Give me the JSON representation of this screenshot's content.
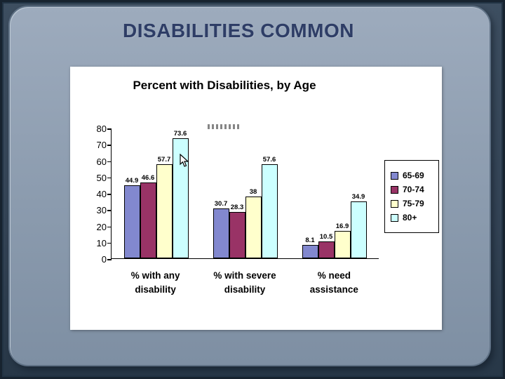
{
  "slide": {
    "title": "DISABILITIES COMMON"
  },
  "chart_data": {
    "type": "bar",
    "title": "Percent with Disabilities, by Age",
    "categories": [
      "% with any disability",
      "% with severe disability",
      "% need assistance"
    ],
    "series": [
      {
        "name": "65-69",
        "color": "#8288cf",
        "values": [
          44.9,
          30.7,
          8.1
        ]
      },
      {
        "name": "70-74",
        "color": "#993366",
        "values": [
          46.6,
          28.3,
          10.5
        ]
      },
      {
        "name": "75-79",
        "color": "#ffffcc",
        "values": [
          57.7,
          38,
          16.9
        ]
      },
      {
        "name": "80+",
        "color": "#ccffff",
        "values": [
          73.6,
          57.6,
          34.9
        ]
      }
    ],
    "ylim": [
      0,
      80
    ],
    "yticks": [
      80,
      70,
      60,
      50,
      40,
      30,
      20,
      10,
      0
    ],
    "legend_position": "right",
    "grid": false,
    "plot_background": "#ffffff"
  }
}
